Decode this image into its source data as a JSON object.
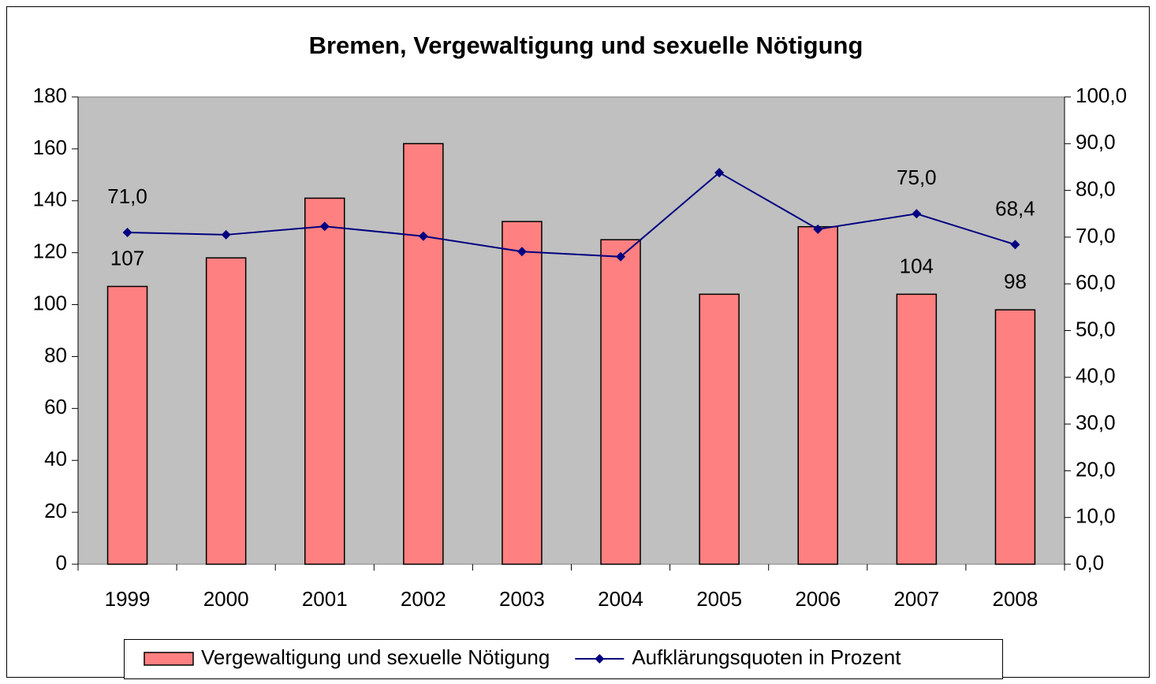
{
  "chart_data": {
    "type": "bar-line",
    "title": "Bremen, Vergewaltigung und sexuelle Nötigung",
    "categories": [
      "1999",
      "2000",
      "2001",
      "2002",
      "2003",
      "2004",
      "2005",
      "2006",
      "2007",
      "2008"
    ],
    "series": [
      {
        "name": "Vergewaltigung und sexuelle Nötigung",
        "type": "bar",
        "color": "#ff8080",
        "values": [
          107,
          118,
          141,
          162,
          132,
          125,
          104,
          130,
          104,
          98
        ],
        "value_labels": [
          "107",
          null,
          null,
          null,
          null,
          null,
          null,
          null,
          "104",
          "98"
        ]
      },
      {
        "name": "Aufklärungsquoten in Prozent",
        "type": "line",
        "axis": "y2",
        "color": "#000080",
        "values": [
          71.0,
          70.5,
          72.3,
          70.2,
          66.9,
          65.8,
          83.8,
          71.7,
          75.0,
          68.4
        ],
        "value_labels": [
          "71,0",
          null,
          null,
          null,
          null,
          null,
          null,
          null,
          "75,0",
          "68,4"
        ]
      }
    ],
    "ylim": [
      0,
      180
    ],
    "yticks": [
      0,
      20,
      40,
      60,
      80,
      100,
      120,
      140,
      160,
      180
    ],
    "y2lim": [
      0,
      100
    ],
    "y2ticks": [
      {
        "value": 0,
        "label": "0,0"
      },
      {
        "value": 10,
        "label": "10,0"
      },
      {
        "value": 20,
        "label": "20,0"
      },
      {
        "value": 30,
        "label": "30,0"
      },
      {
        "value": 40,
        "label": "40,0"
      },
      {
        "value": 50,
        "label": "50,0"
      },
      {
        "value": 60,
        "label": "60,0"
      },
      {
        "value": 70,
        "label": "70,0"
      },
      {
        "value": 80,
        "label": "80,0"
      },
      {
        "value": 90,
        "label": "90,0"
      },
      {
        "value": 100,
        "label": "100,0"
      }
    ],
    "plot_background": "#c0c0c0",
    "legend": "bottom"
  }
}
